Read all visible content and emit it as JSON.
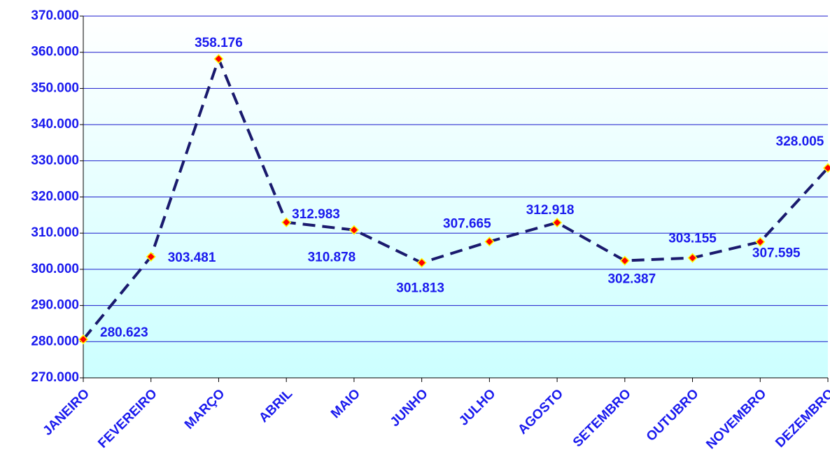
{
  "chart_data": {
    "type": "line",
    "categories": [
      "JANEIRO",
      "FEVEREIRO",
      "MARÇO",
      "ABRIL",
      "MAIO",
      "JUNHO",
      "JULHO",
      "AGOSTO",
      "SETEMBRO",
      "OUTUBRO",
      "NOVEMBRO",
      "DEZEMBRO"
    ],
    "values": [
      280623,
      303481,
      358176,
      312983,
      310878,
      301813,
      307665,
      312918,
      302387,
      303155,
      307595,
      328005
    ],
    "value_labels": [
      "280.623",
      "303.481",
      "358.176",
      "312.983",
      "310.878",
      "301.813",
      "307.665",
      "312.918",
      "302.387",
      "303.155",
      "307.595",
      "328.005"
    ],
    "color": "#1a1a6e",
    "marker_color": "#ff0000",
    "marker_edge": "#ffff00",
    "ylim": [
      270000,
      370000
    ],
    "yticks": [
      {
        "value": 270000,
        "label": "270.000"
      },
      {
        "value": 280000,
        "label": "280.000"
      },
      {
        "value": 290000,
        "label": "290.000"
      },
      {
        "value": 300000,
        "label": "300.000"
      },
      {
        "value": 310000,
        "label": "310.000"
      },
      {
        "value": 320000,
        "label": "320.000"
      },
      {
        "value": 330000,
        "label": "330.000"
      },
      {
        "value": 340000,
        "label": "340.000"
      },
      {
        "value": 350000,
        "label": "350.000"
      },
      {
        "value": 360000,
        "label": "360.000"
      },
      {
        "value": 370000,
        "label": "370.000"
      }
    ],
    "grid": true
  }
}
